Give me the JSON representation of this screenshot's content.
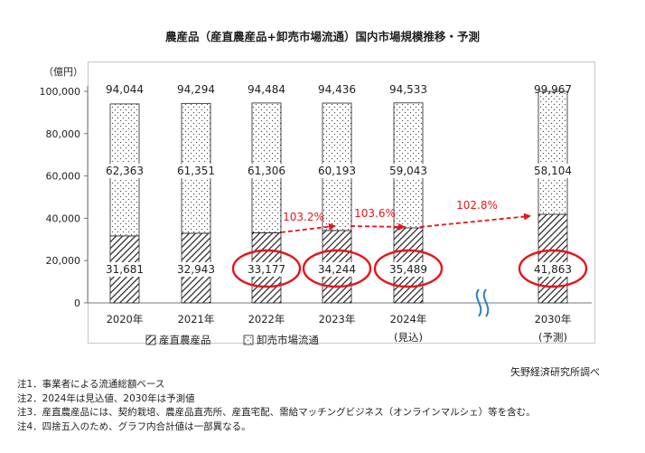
{
  "title": "農産品（産直農産品+卸売市場流通）国内市場規模推移・予測",
  "chart_data": {
    "type": "bar",
    "stacked": true,
    "unit_label": "（億円）",
    "categories": [
      "2020年",
      "2021年",
      "2022年",
      "2023年",
      "2024年",
      "2030年"
    ],
    "category_sublabels": [
      "",
      "",
      "",
      "",
      "(見込)",
      "(予測)"
    ],
    "series": [
      {
        "name": "産直農産品",
        "values": [
          31681,
          32943,
          33177,
          34244,
          35489,
          41863
        ],
        "pattern": "diagonal-hatch",
        "color": "#222222"
      },
      {
        "name": "卸売市場流通",
        "values": [
          62363,
          61351,
          61306,
          60193,
          59043,
          58104
        ],
        "pattern": "dots",
        "color": "#ffffff"
      }
    ],
    "totals": [
      94044,
      94294,
      94484,
      94436,
      94533,
      99967
    ],
    "ylim": [
      0,
      100000
    ],
    "yticks": [
      "0",
      "20,000",
      "40,000",
      "60,000",
      "80,000",
      "100,000"
    ],
    "ytick_values": [
      0,
      20000,
      40000,
      60000,
      80000,
      100000
    ],
    "label_text": {
      "direct": [
        "31,681",
        "32,943",
        "33,177",
        "34,244",
        "35,489",
        "41,863"
      ],
      "market": [
        "62,363",
        "61,351",
        "61,306",
        "60,193",
        "59,043",
        "58,104"
      ],
      "total": [
        "94,044",
        "94,294",
        "94,484",
        "94,436",
        "94,533",
        "99,967"
      ]
    },
    "circled_categories": [
      2,
      3,
      4,
      5
    ],
    "growth_annotations": [
      {
        "from": 2,
        "to": 3,
        "label": "103.2%"
      },
      {
        "from": 3,
        "to": 4,
        "label": "103.6%"
      },
      {
        "from": 4,
        "to": 5,
        "label": "102.8%"
      }
    ],
    "axis_break_between": [
      4,
      5
    ],
    "legend": "bottom",
    "grid": false,
    "accent_color": "#e8141b"
  },
  "source": "矢野経済研究所調べ",
  "notes": [
    "注1．事業者による流通総額ベース",
    "注2．2024年は見込値、2030年は予測値",
    "注3．産直農産品には、契約栽培、農産品直売所、産直宅配、需給マッチングビジネス（オンラインマルシェ）等を含む。",
    "注4．四捨五入のため、グラフ内合計値は一部異なる。"
  ]
}
